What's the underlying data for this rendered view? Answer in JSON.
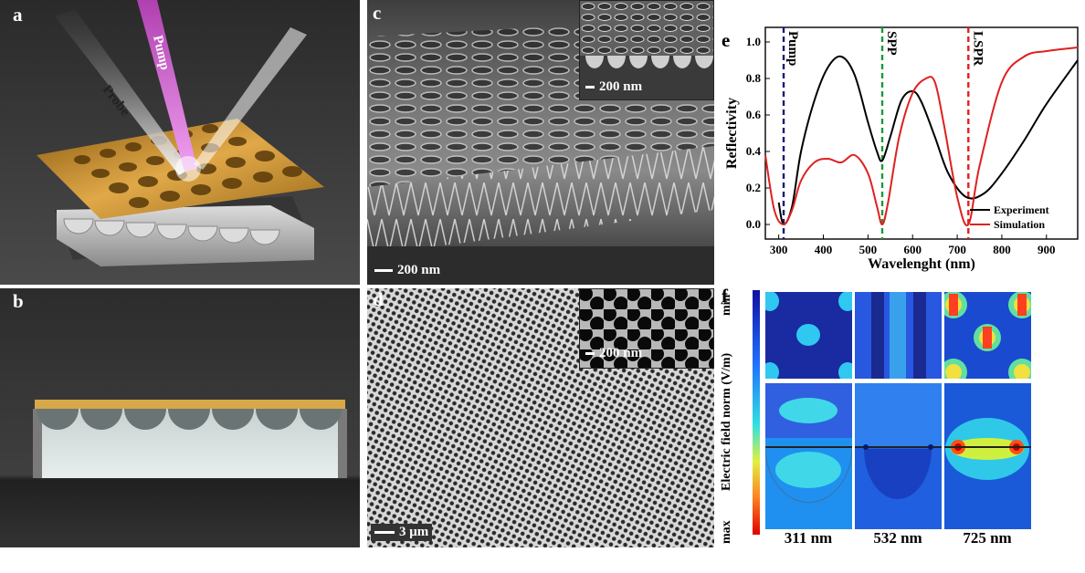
{
  "panels": {
    "a": {
      "label": "a",
      "beam_probe": "Probe",
      "beam_pump": "Pump"
    },
    "b": {
      "label": "b"
    },
    "c": {
      "label": "c",
      "scale": "200 nm",
      "inset_scale": "200 nm"
    },
    "d": {
      "label": "d",
      "scale": "3 μm",
      "inset_scale": "200 nm"
    },
    "e": {
      "label": "e"
    },
    "f": {
      "label": "f",
      "colorbar_label": "Electric field norm (V/m)",
      "colorbar_min": "min",
      "colorbar_max": "max",
      "wavelengths": [
        "311 nm",
        "532 nm",
        "725 nm"
      ]
    }
  },
  "chart_data": {
    "type": "line",
    "xlabel": "Wavelenght (nm)",
    "ylabel": "Reflectivity",
    "xlim": [
      270,
      970
    ],
    "ylim": [
      -0.08,
      1.08
    ],
    "xticks": [
      300,
      400,
      500,
      600,
      700,
      800,
      900
    ],
    "yticks": [
      0.0,
      0.2,
      0.4,
      0.6,
      0.8,
      1.0
    ],
    "vlines": [
      {
        "label": "Pump",
        "x": 311,
        "color": "#1a1a7a"
      },
      {
        "label": "SPP",
        "x": 532,
        "color": "#1a9a3a"
      },
      {
        "label": "LSPR",
        "x": 725,
        "color": "#e02020"
      }
    ],
    "legend_position": "bottom-right",
    "series": [
      {
        "name": "Experiment",
        "color": "#000000",
        "x": [
          300,
          311,
          330,
          350,
          380,
          410,
          440,
          470,
          500,
          520,
          532,
          550,
          575,
          600,
          620,
          650,
          680,
          720,
          760,
          800,
          850,
          900,
          970
        ],
        "y": [
          0.12,
          0.0,
          0.1,
          0.4,
          0.68,
          0.86,
          0.92,
          0.82,
          0.56,
          0.4,
          0.35,
          0.48,
          0.68,
          0.73,
          0.67,
          0.48,
          0.28,
          0.15,
          0.17,
          0.28,
          0.46,
          0.66,
          0.9
        ]
      },
      {
        "name": "Simulation",
        "color": "#e02020",
        "x": [
          270,
          290,
          311,
          330,
          350,
          380,
          410,
          440,
          470,
          500,
          520,
          532,
          545,
          570,
          600,
          630,
          650,
          670,
          700,
          725,
          750,
          800,
          850,
          900,
          970
        ],
        "y": [
          0.38,
          0.08,
          0.0,
          0.08,
          0.24,
          0.34,
          0.36,
          0.34,
          0.38,
          0.28,
          0.1,
          0.0,
          0.12,
          0.48,
          0.72,
          0.8,
          0.78,
          0.55,
          0.15,
          0.0,
          0.32,
          0.78,
          0.92,
          0.95,
          0.97
        ]
      }
    ]
  },
  "colors": {
    "gold": "#c8912a",
    "pump_beam": "#d65cd6",
    "experiment": "#000000",
    "simulation": "#e02020"
  }
}
